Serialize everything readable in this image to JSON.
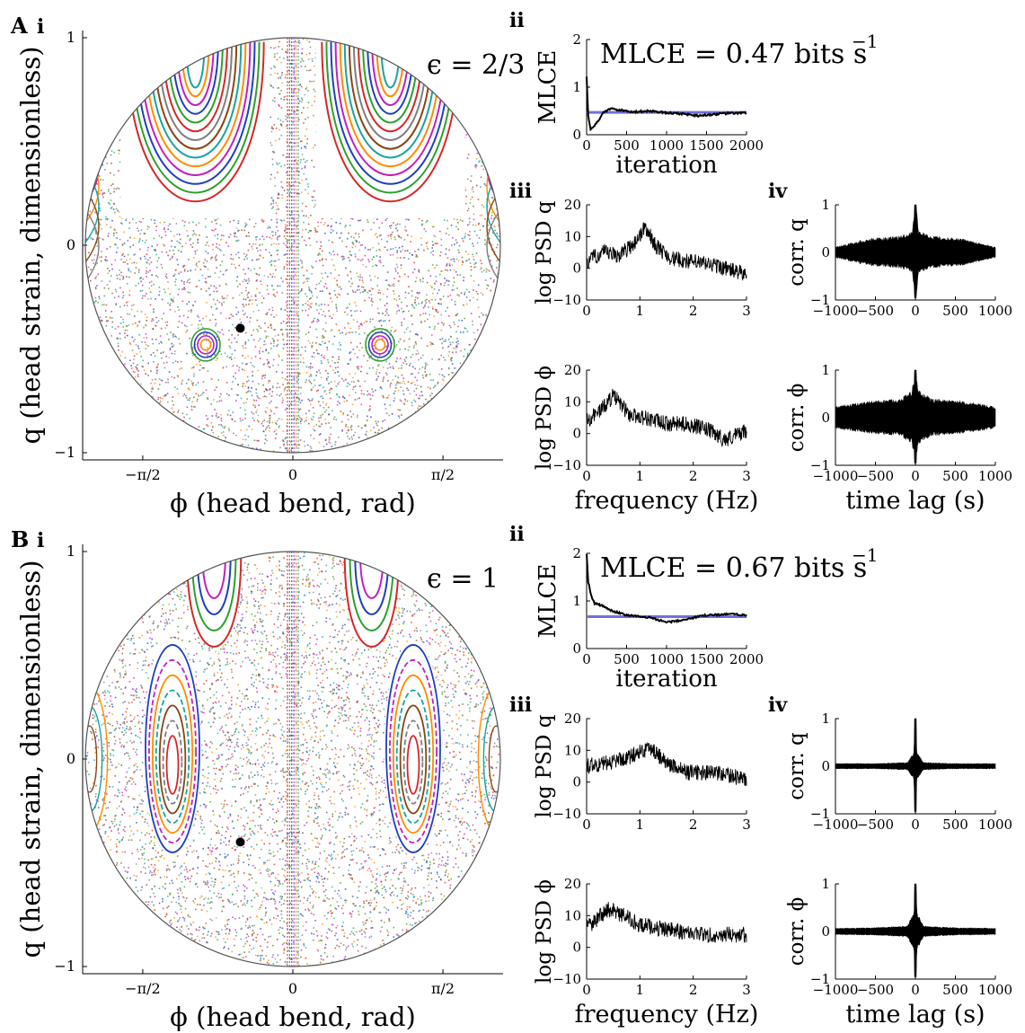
{
  "panels": [
    {
      "letter": "A",
      "epsilon_label": "ϵ = 2/3",
      "mlce_label": "MLCE = 0.47 bits s",
      "mlce_exp": "−1",
      "subpanel_labels": {
        "i": "i",
        "ii": "ii",
        "iii": "iii",
        "iv": "iv"
      }
    },
    {
      "letter": "B",
      "epsilon_label": "ϵ = 1",
      "mlce_label": "MLCE = 0.67 bits s",
      "mlce_exp": "−1",
      "subpanel_labels": {
        "i": "i",
        "ii": "ii",
        "iii": "iii",
        "iv": "iv"
      }
    }
  ],
  "colors": {
    "axis": "#000000",
    "mlce_reference": "#7070e0",
    "trace": "#000000",
    "poincare_palette": [
      "#d62728",
      "#2ca02c",
      "#1f3fbf",
      "#c020c0",
      "#ff8c00",
      "#17a2a2",
      "#8b4513",
      "#7f7f7f"
    ]
  },
  "chart_data": [
    {
      "panel": "A.i",
      "type": "scatter",
      "xlabel": "ϕ (head bend, rad)",
      "ylabel": "q (head strain, dimensionless)",
      "x_ticks": [
        "−π/2",
        "0",
        "π/2"
      ],
      "y_ticks": [
        "−1",
        "0",
        "1"
      ],
      "xlim": [
        -2.2,
        2.2
      ],
      "ylim": [
        -1,
        1
      ],
      "marker": {
        "x": -0.55,
        "y": -0.4
      },
      "epsilon": "2/3"
    },
    {
      "panel": "A.ii",
      "type": "line",
      "xlabel": "iteration",
      "ylabel": "MLCE",
      "x_ticks": [
        "0",
        "500",
        "1000",
        "1500",
        "2000"
      ],
      "y_ticks": [
        "0",
        "1",
        "2"
      ],
      "xlim": [
        0,
        2000
      ],
      "ylim": [
        0,
        2
      ],
      "reference": 0.47,
      "series": [
        {
          "x": [
            0,
            20,
            50,
            100,
            150,
            200,
            300,
            400,
            600,
            800,
            1000,
            1200,
            1400,
            1600,
            1800,
            2000
          ],
          "y": [
            1.2,
            0.4,
            0.1,
            0.2,
            0.3,
            0.45,
            0.55,
            0.52,
            0.48,
            0.5,
            0.46,
            0.44,
            0.4,
            0.43,
            0.45,
            0.46
          ]
        }
      ]
    },
    {
      "panel": "A.iii.q",
      "type": "line",
      "xlabel": "",
      "ylabel": "log PSD q",
      "x_ticks": [
        "0",
        "1",
        "2",
        "3"
      ],
      "y_ticks": [
        "−10",
        "0",
        "10",
        "20"
      ],
      "xlim": [
        0,
        3
      ],
      "ylim": [
        -10,
        20
      ],
      "series": [
        {
          "x": [
            0,
            0.3,
            0.6,
            0.9,
            1.1,
            1.3,
            1.6,
            2.0,
            2.4,
            2.8,
            3.0
          ],
          "y": [
            2,
            5,
            4,
            8,
            13,
            7,
            3,
            2,
            1,
            -1,
            -2
          ]
        }
      ]
    },
    {
      "panel": "A.iii.phi",
      "type": "line",
      "xlabel": "frequency (Hz)",
      "ylabel": "log PSD ϕ",
      "x_ticks": [
        "0",
        "1",
        "2",
        "3"
      ],
      "y_ticks": [
        "−10",
        "0",
        "10",
        "20"
      ],
      "xlim": [
        0,
        3
      ],
      "ylim": [
        -10,
        20
      ],
      "series": [
        {
          "x": [
            0,
            0.3,
            0.5,
            0.8,
            1.1,
            1.5,
            1.9,
            2.3,
            2.6,
            3.0
          ],
          "y": [
            4,
            8,
            12,
            6,
            5,
            3,
            3,
            1,
            -2,
            1
          ]
        }
      ]
    },
    {
      "panel": "A.iv.q",
      "type": "area",
      "xlabel": "",
      "ylabel": "corr. q",
      "x_ticks": [
        "−1000",
        "−500",
        "0",
        "500",
        "1000"
      ],
      "y_ticks": [
        "−1",
        "0",
        "1"
      ],
      "xlim": [
        -1000,
        1000
      ],
      "ylim": [
        -1,
        1
      ],
      "envelope": {
        "x": [
          -1000,
          -600,
          -200,
          -40,
          0,
          40,
          200,
          600,
          1000
        ],
        "y": [
          0.1,
          0.25,
          0.3,
          0.4,
          1.0,
          0.4,
          0.3,
          0.25,
          0.1
        ]
      }
    },
    {
      "panel": "A.iv.phi",
      "type": "area",
      "xlabel": "time lag (s)",
      "ylabel": "corr. ϕ",
      "x_ticks": [
        "−1000",
        "−500",
        "0",
        "500",
        "1000"
      ],
      "y_ticks": [
        "−1",
        "0",
        "1"
      ],
      "xlim": [
        -1000,
        1000
      ],
      "ylim": [
        -1,
        1
      ],
      "envelope": {
        "x": [
          -1000,
          -600,
          -200,
          -40,
          0,
          40,
          200,
          600,
          1000
        ],
        "y": [
          0.2,
          0.3,
          0.35,
          0.5,
          1.0,
          0.5,
          0.35,
          0.3,
          0.2
        ]
      }
    },
    {
      "panel": "B.i",
      "type": "scatter",
      "xlabel": "ϕ (head bend, rad)",
      "ylabel": "q (head strain, dimensionless)",
      "x_ticks": [
        "−π/2",
        "0",
        "π/2"
      ],
      "y_ticks": [
        "−1",
        "0",
        "1"
      ],
      "xlim": [
        -2.2,
        2.2
      ],
      "ylim": [
        -1,
        1
      ],
      "marker": {
        "x": -0.55,
        "y": -0.4
      },
      "epsilon": "1"
    },
    {
      "panel": "B.ii",
      "type": "line",
      "xlabel": "iteration",
      "ylabel": "MLCE",
      "x_ticks": [
        "0",
        "500",
        "1000",
        "1500",
        "2000"
      ],
      "y_ticks": [
        "0",
        "1",
        "2"
      ],
      "xlim": [
        0,
        2000
      ],
      "ylim": [
        0,
        2
      ],
      "reference": 0.67,
      "series": [
        {
          "x": [
            0,
            20,
            60,
            100,
            200,
            300,
            500,
            800,
            1000,
            1200,
            1500,
            1800,
            2000
          ],
          "y": [
            2.0,
            1.4,
            1.1,
            0.95,
            0.9,
            0.8,
            0.7,
            0.65,
            0.55,
            0.6,
            0.7,
            0.72,
            0.7
          ]
        }
      ]
    },
    {
      "panel": "B.iii.q",
      "type": "line",
      "xlabel": "",
      "ylabel": "log PSD q",
      "x_ticks": [
        "0",
        "1",
        "2",
        "3"
      ],
      "y_ticks": [
        "−10",
        "0",
        "10",
        "20"
      ],
      "xlim": [
        0,
        3
      ],
      "ylim": [
        -10,
        20
      ],
      "series": [
        {
          "x": [
            0,
            0.4,
            0.8,
            1.2,
            1.5,
            1.9,
            2.3,
            2.7,
            3.0
          ],
          "y": [
            5,
            6,
            8,
            11,
            6,
            3,
            3,
            2,
            1
          ]
        }
      ]
    },
    {
      "panel": "B.iii.phi",
      "type": "line",
      "xlabel": "frequency (Hz)",
      "ylabel": "log PSD ϕ",
      "x_ticks": [
        "0",
        "1",
        "2",
        "3"
      ],
      "y_ticks": [
        "−10",
        "0",
        "10",
        "20"
      ],
      "xlim": [
        0,
        3
      ],
      "ylim": [
        -10,
        20
      ],
      "series": [
        {
          "x": [
            0,
            0.2,
            0.4,
            0.7,
            1.0,
            1.4,
            1.8,
            2.2,
            2.6,
            3.0
          ],
          "y": [
            6,
            9,
            12,
            10,
            7,
            6,
            5,
            4,
            4,
            4
          ]
        }
      ]
    },
    {
      "panel": "B.iv.q",
      "type": "area",
      "xlabel": "",
      "ylabel": "corr. q",
      "x_ticks": [
        "−1000",
        "−500",
        "0",
        "500",
        "1000"
      ],
      "y_ticks": [
        "−1",
        "0",
        "1"
      ],
      "xlim": [
        -1000,
        1000
      ],
      "ylim": [
        -1,
        1
      ],
      "envelope": {
        "x": [
          -1000,
          -500,
          -100,
          -20,
          0,
          20,
          100,
          500,
          1000
        ],
        "y": [
          0.05,
          0.05,
          0.07,
          0.25,
          1.0,
          0.25,
          0.07,
          0.05,
          0.05
        ]
      }
    },
    {
      "panel": "B.iv.phi",
      "type": "area",
      "xlabel": "time lag (s)",
      "ylabel": "corr. ϕ",
      "x_ticks": [
        "−1000",
        "−500",
        "0",
        "500",
        "1000"
      ],
      "y_ticks": [
        "−1",
        "0",
        "1"
      ],
      "xlim": [
        -1000,
        1000
      ],
      "ylim": [
        -1,
        1
      ],
      "envelope": {
        "x": [
          -1000,
          -500,
          -100,
          -20,
          0,
          20,
          100,
          500,
          1000
        ],
        "y": [
          0.06,
          0.07,
          0.1,
          0.35,
          1.0,
          0.35,
          0.1,
          0.07,
          0.06
        ]
      }
    }
  ]
}
